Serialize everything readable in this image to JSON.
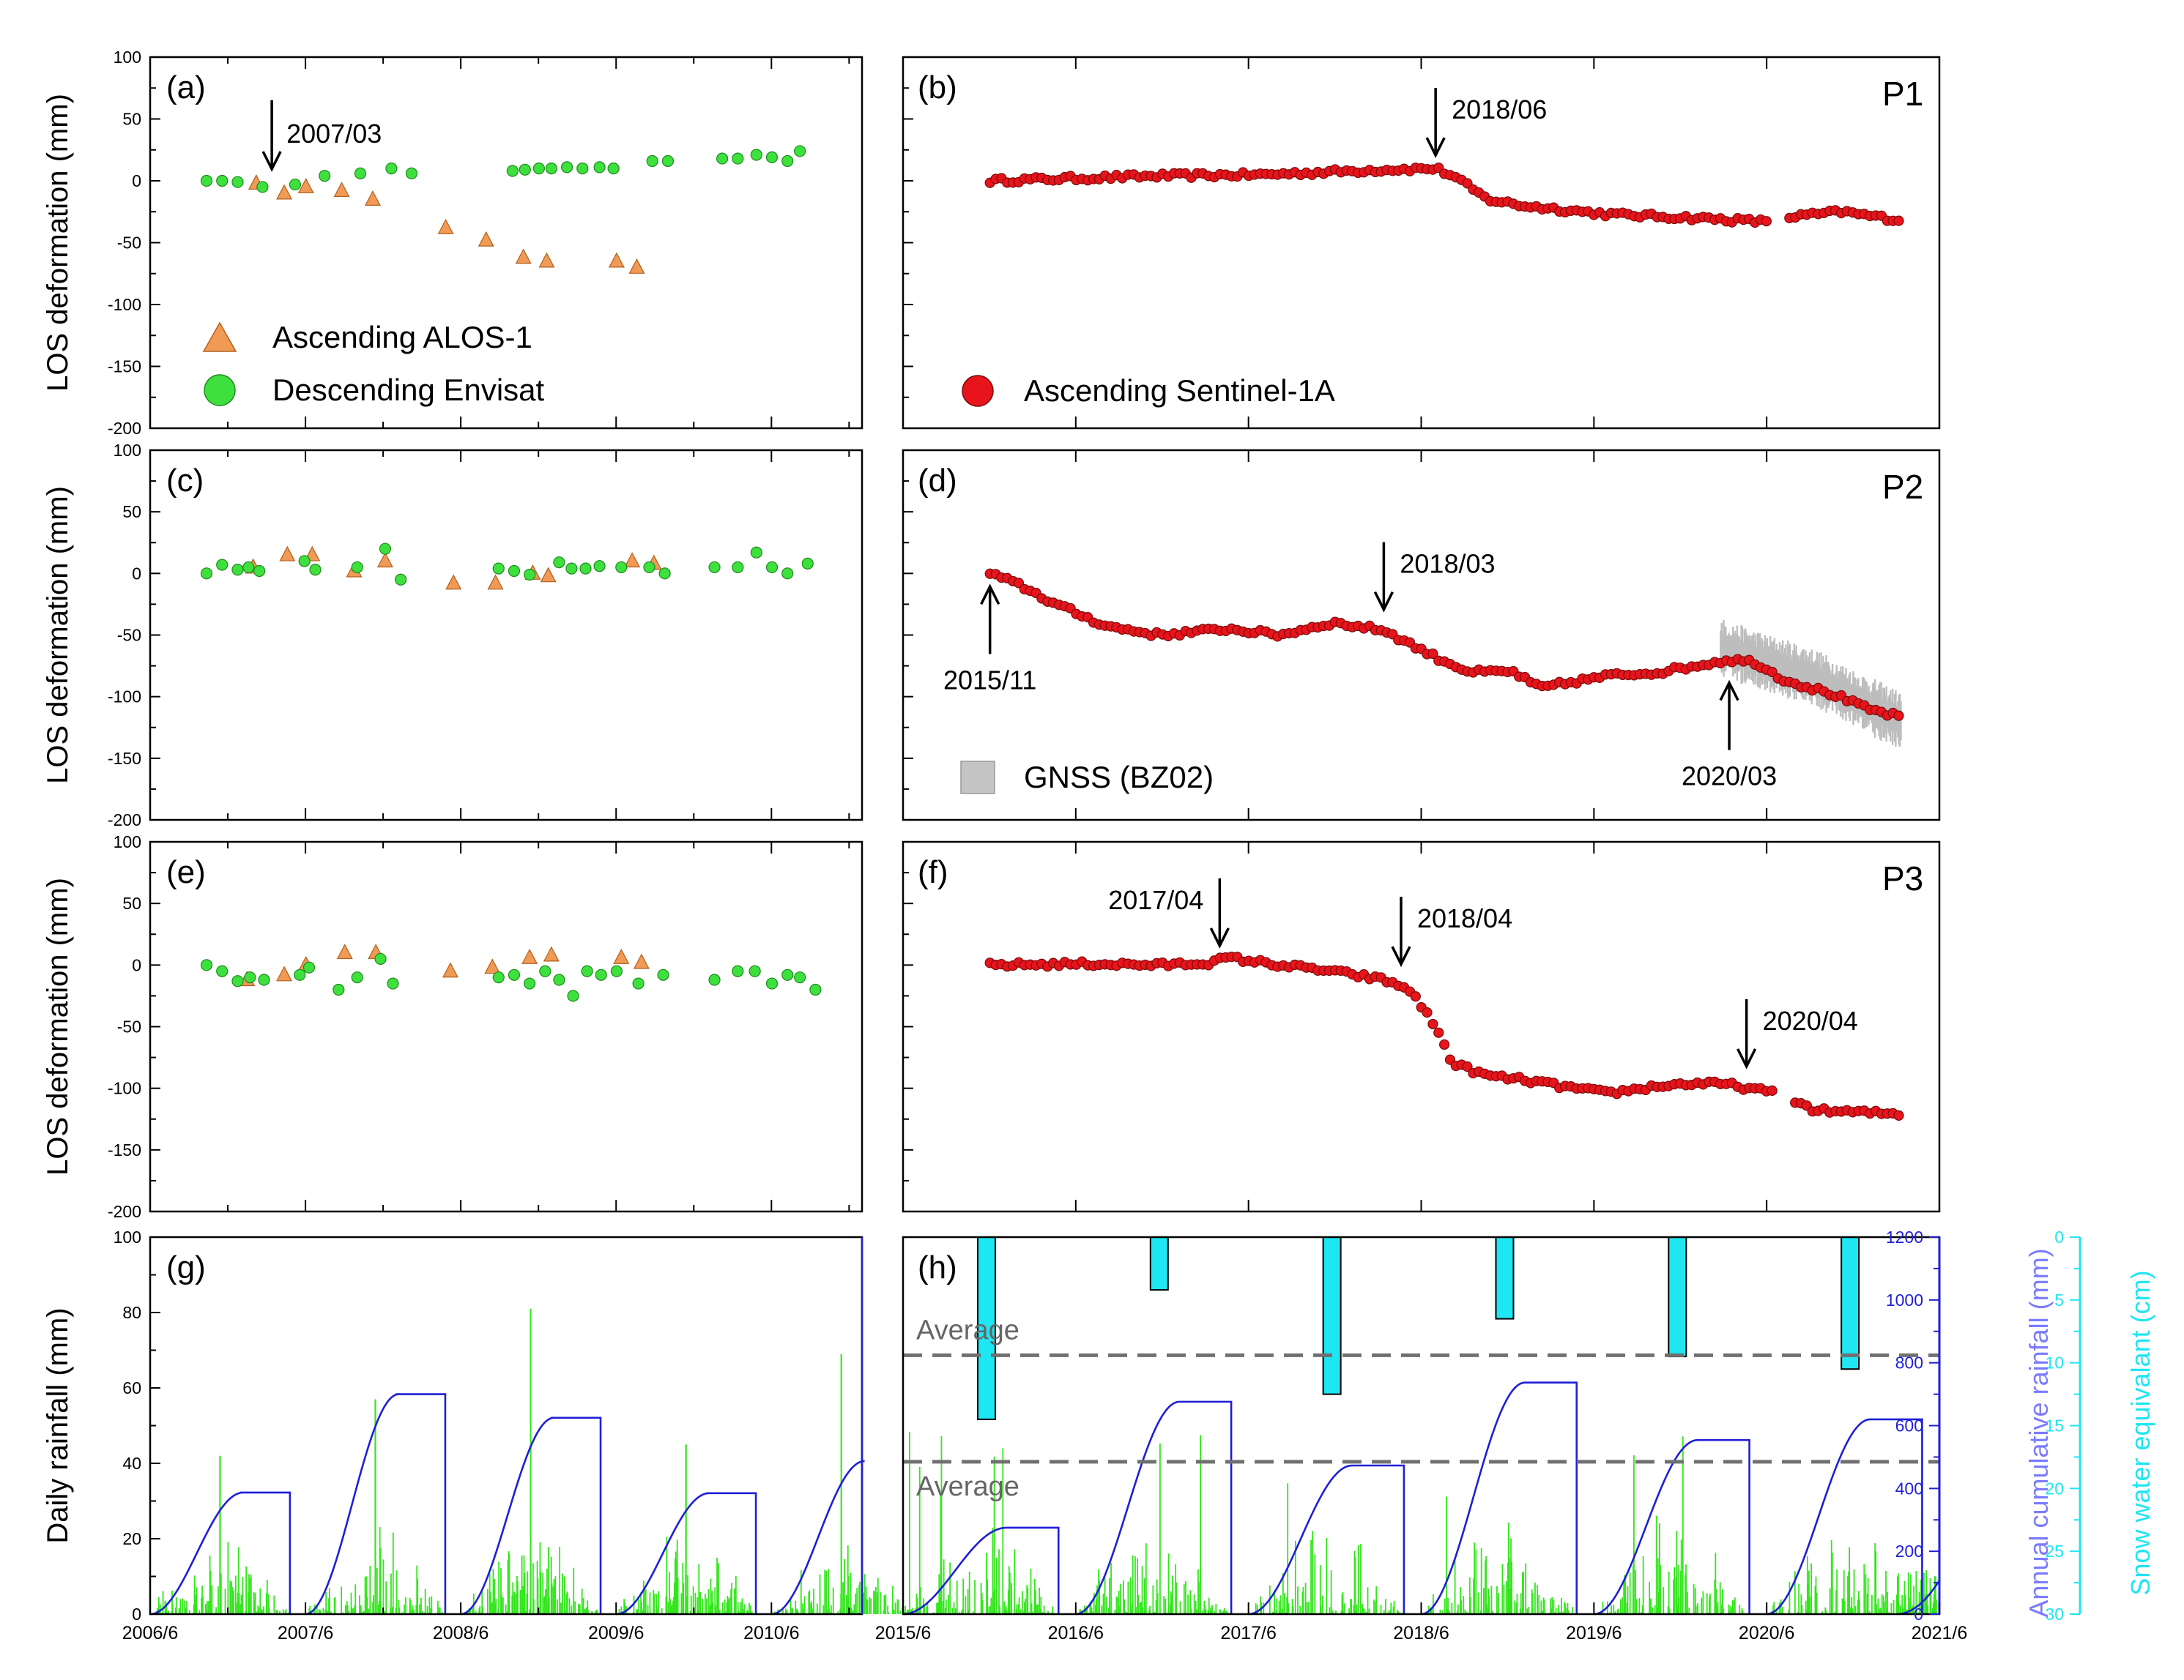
{
  "chart_data": [
    {
      "panel": "a",
      "type": "scatter",
      "label": "(a)",
      "ylabel": "LOS deformation (mm)",
      "ylim": [
        -200,
        100
      ],
      "yticks": [
        100,
        50,
        0,
        -50,
        -100,
        -150,
        -200
      ],
      "xrange": [
        "2006/6",
        "2011/1"
      ],
      "legend": [
        "Ascending ALOS-1",
        "Descending Envisat"
      ],
      "series": [
        {
          "name": "Ascending ALOS-1",
          "x": [
            2007.1,
            2007.28,
            2007.42,
            2007.65,
            2007.85,
            2008.32,
            2008.58,
            2008.82,
            2008.97,
            2009.42,
            2009.55
          ],
          "values": [
            -2,
            -10,
            -5,
            -8,
            -15,
            -38,
            -48,
            -62,
            -65,
            -65,
            -70
          ]
        },
        {
          "name": "Descending Envisat",
          "x": [
            2006.78,
            2006.88,
            2006.98,
            2007.14,
            2007.35,
            2007.54,
            2007.77,
            2007.97,
            2008.1,
            2008.75,
            2008.83,
            2008.92,
            2009.0,
            2009.1,
            2009.2,
            2009.31,
            2009.4,
            2009.65,
            2009.75,
            2010.1,
            2010.2,
            2010.32,
            2010.42,
            2010.52,
            2010.6
          ],
          "values": [
            0,
            0,
            -1,
            -5,
            -3,
            4,
            6,
            10,
            6,
            8,
            9,
            10,
            10,
            11,
            10,
            11,
            10,
            16,
            16,
            18,
            18,
            21,
            19,
            16,
            24
          ]
        }
      ],
      "annotations": [
        {
          "text": "2007/03",
          "x": 2007.2,
          "y": 0
        }
      ]
    },
    {
      "panel": "b",
      "type": "scatter",
      "label": "(b)",
      "point_label": "P1",
      "ylim": [
        -200,
        100
      ],
      "xrange": [
        "2015/6",
        "2021/6"
      ],
      "legend": [
        "Ascending Sentinel-1A"
      ],
      "series": [
        {
          "name": "Ascending Sentinel-1A",
          "curve": [
            [
              2015.92,
              0
            ],
            [
              2016.9,
              4
            ],
            [
              2017.5,
              5
            ],
            [
              2018.2,
              9
            ],
            [
              2018.5,
              10
            ],
            [
              2018.6,
              4
            ],
            [
              2018.8,
              -15
            ],
            [
              2019.0,
              -20
            ],
            [
              2019.5,
              -27
            ],
            [
              2020.0,
              -30
            ],
            [
              2020.4,
              -33
            ],
            [
              2020.5,
              -30
            ],
            [
              2020.85,
              -25
            ],
            [
              2021.2,
              -32
            ]
          ],
          "gaps": [
            [
              2020.42,
              2020.52
            ]
          ]
        }
      ],
      "annotations": [
        {
          "text": "2018/06",
          "x": 2018.5,
          "y": 10
        }
      ]
    },
    {
      "panel": "c",
      "type": "scatter",
      "label": "(c)",
      "ylabel": "LOS deformation (mm)",
      "ylim": [
        -200,
        100
      ],
      "yticks": [
        100,
        50,
        0,
        -50,
        -100,
        -150,
        -200
      ],
      "xrange": [
        "2006/6",
        "2011/1"
      ],
      "series": [
        {
          "name": "Ascending ALOS-1",
          "x": [
            2007.08,
            2007.3,
            2007.46,
            2007.73,
            2007.93,
            2008.37,
            2008.64,
            2008.88,
            2008.98,
            2009.52,
            2009.66
          ],
          "values": [
            5,
            15,
            15,
            2,
            10,
            -8,
            -8,
            0,
            -2,
            10,
            8
          ]
        },
        {
          "name": "Descending Envisat",
          "x": [
            2006.78,
            2006.88,
            2006.98,
            2007.05,
            2007.12,
            2007.41,
            2007.48,
            2007.75,
            2007.93,
            2008.03,
            2008.66,
            2008.76,
            2008.86,
            2009.05,
            2009.13,
            2009.22,
            2009.31,
            2009.45,
            2009.63,
            2009.73,
            2010.05,
            2010.2,
            2010.32,
            2010.42,
            2010.52,
            2010.65
          ],
          "values": [
            0,
            7,
            3,
            5,
            2,
            10,
            3,
            5,
            20,
            -5,
            4,
            2,
            -1,
            9,
            4,
            4,
            6,
            5,
            5,
            0,
            5,
            5,
            17,
            5,
            0,
            8
          ]
        }
      ]
    },
    {
      "panel": "d",
      "type": "scatter",
      "label": "(d)",
      "point_label": "P2",
      "ylim": [
        -200,
        100
      ],
      "xrange": [
        "2015/6",
        "2021/6"
      ],
      "legend": [
        "GNSS (BZ02)"
      ],
      "series": [
        {
          "name": "Ascending Sentinel-1A",
          "curve": [
            [
              2015.92,
              0
            ],
            [
              2016.1,
              -10
            ],
            [
              2016.3,
              -25
            ],
            [
              2016.6,
              -43
            ],
            [
              2016.9,
              -50
            ],
            [
              2017.3,
              -45
            ],
            [
              2017.6,
              -50
            ],
            [
              2017.9,
              -40
            ],
            [
              2018.2,
              -46
            ],
            [
              2018.5,
              -68
            ],
            [
              2018.7,
              -80
            ],
            [
              2018.95,
              -80
            ],
            [
              2019.1,
              -93
            ],
            [
              2019.3,
              -88
            ],
            [
              2019.5,
              -83
            ],
            [
              2019.8,
              -80
            ],
            [
              2020.0,
              -75
            ],
            [
              2020.2,
              -70
            ],
            [
              2020.35,
              -72
            ],
            [
              2020.5,
              -85
            ],
            [
              2020.6,
              -90
            ],
            [
              2020.8,
              -98
            ],
            [
              2021.0,
              -110
            ],
            [
              2021.2,
              -117
            ]
          ]
        },
        {
          "name": "GNSS (BZ02)",
          "curve": [
            [
              2020.15,
              -60
            ],
            [
              2020.4,
              -72
            ],
            [
              2020.7,
              -85
            ],
            [
              2020.9,
              -100
            ],
            [
              2021.05,
              -110
            ],
            [
              2021.2,
              -120
            ]
          ]
        }
      ],
      "annotations": [
        {
          "text": "2015/11",
          "x": 2015.92,
          "y": 0
        },
        {
          "text": "2018/03",
          "x": 2018.2,
          "y": -40
        },
        {
          "text": "2020/03",
          "x": 2020.2,
          "y": -78
        }
      ]
    },
    {
      "panel": "e",
      "type": "scatter",
      "label": "(e)",
      "ylabel": "LOS deformation (mm)",
      "ylim": [
        -200,
        100
      ],
      "yticks": [
        100,
        50,
        0,
        -50,
        -100,
        -150,
        -200
      ],
      "xrange": [
        "2006/6",
        "2011/1"
      ],
      "series": [
        {
          "name": "Ascending ALOS-1",
          "x": [
            2007.04,
            2007.28,
            2007.42,
            2007.67,
            2007.87,
            2008.35,
            2008.62,
            2008.86,
            2009.0,
            2009.45,
            2009.58
          ],
          "values": [
            -12,
            -8,
            0,
            10,
            10,
            -5,
            -2,
            6,
            8,
            6,
            2
          ]
        },
        {
          "name": "Descending Envisat",
          "x": [
            2006.78,
            2006.88,
            2006.98,
            2007.06,
            2007.15,
            2007.38,
            2007.44,
            2007.63,
            2007.75,
            2007.9,
            2007.98,
            2008.66,
            2008.76,
            2008.86,
            2008.96,
            2009.05,
            2009.14,
            2009.23,
            2009.32,
            2009.42,
            2009.56,
            2009.72,
            2010.05,
            2010.2,
            2010.31,
            2010.42,
            2010.52,
            2010.6,
            2010.7
          ],
          "values": [
            0,
            -5,
            -13,
            -10,
            -12,
            -8,
            -2,
            -20,
            -10,
            5,
            -15,
            -10,
            -8,
            -15,
            -5,
            -12,
            -25,
            -5,
            -8,
            -5,
            -15,
            -8,
            -12,
            -5,
            -5,
            -15,
            -8,
            -10,
            -20
          ]
        }
      ]
    },
    {
      "panel": "f",
      "type": "scatter",
      "label": "(f)",
      "point_label": "P3",
      "ylim": [
        -200,
        100
      ],
      "xrange": [
        "2015/6",
        "2021/6"
      ],
      "series": [
        {
          "name": "Ascending Sentinel-1A",
          "curve": [
            [
              2015.92,
              0
            ],
            [
              2016.5,
              1
            ],
            [
              2016.9,
              0
            ],
            [
              2017.2,
              2
            ],
            [
              2017.3,
              6
            ],
            [
              2017.6,
              0
            ],
            [
              2017.9,
              -5
            ],
            [
              2018.2,
              -12
            ],
            [
              2018.35,
              -20
            ],
            [
              2018.5,
              -50
            ],
            [
              2018.6,
              -80
            ],
            [
              2018.8,
              -90
            ],
            [
              2019.0,
              -93
            ],
            [
              2019.3,
              -100
            ],
            [
              2019.5,
              -104
            ],
            [
              2019.8,
              -98
            ],
            [
              2020.0,
              -96
            ],
            [
              2020.2,
              -97
            ],
            [
              2020.5,
              -105
            ],
            [
              2020.7,
              -118
            ],
            [
              2021.2,
              -121
            ]
          ],
          "gaps": [
            [
              2020.45,
              2020.55
            ]
          ]
        }
      ],
      "annotations": [
        {
          "text": "2017/04",
          "x": 2017.25,
          "y": 5
        },
        {
          "text": "2018/04",
          "x": 2018.3,
          "y": -10
        },
        {
          "text": "2020/04",
          "x": 2020.3,
          "y": -93
        }
      ]
    },
    {
      "panel": "g",
      "type": "bar",
      "label": "(g)",
      "ylabel": "Daily rainfall (mm)",
      "ylim": [
        0,
        100
      ],
      "yticks": [
        100,
        80,
        60,
        40,
        20,
        0
      ],
      "xticks": [
        "2006/6",
        "2007/6",
        "2008/6",
        "2009/6",
        "2010/6"
      ],
      "series": [
        {
          "name": "Daily rainfall",
          "yearly_peaks": [
            42,
            57,
            81,
            45,
            69
          ]
        },
        {
          "name": "Annual cumulative rainfall",
          "ylim": [
            0,
            1200
          ],
          "yearly_totals": [
            387,
            700,
            625,
            385,
            487
          ]
        }
      ]
    },
    {
      "panel": "h",
      "type": "bar",
      "label": "(h)",
      "ylim": [
        0,
        1200
      ],
      "xticks": [
        "2015/6",
        "2016/6",
        "2017/6",
        "2018/6",
        "2019/6",
        "2020/6",
        "2021/6"
      ],
      "y2label": "Annual cumulative rainfall (mm)",
      "y2ticks": [
        1200,
        1000,
        800,
        600,
        400,
        200,
        0
      ],
      "y3label": "Snow water equivalant (cm)",
      "y3ticks": [
        0,
        5,
        10,
        15,
        20,
        25,
        30
      ],
      "series": [
        {
          "name": "Annual cumulative rainfall",
          "yearly_totals": [
            275,
            676,
            473,
            737,
            554,
            620,
            110
          ]
        },
        {
          "name": "Snow water equivalant",
          "years": [
            "2015/2016",
            "2016/2017",
            "2017/2018",
            "2018/2019",
            "2019/2020",
            "2020/2021"
          ],
          "values": [
            14.5,
            4.2,
            12.5,
            6.5,
            9.5,
            10.5
          ]
        }
      ],
      "reference_lines": [
        {
          "label": "Average",
          "axis": "snow",
          "value": 9.4
        },
        {
          "label": "Average",
          "axis": "rainfall",
          "value": 485
        }
      ]
    }
  ]
}
